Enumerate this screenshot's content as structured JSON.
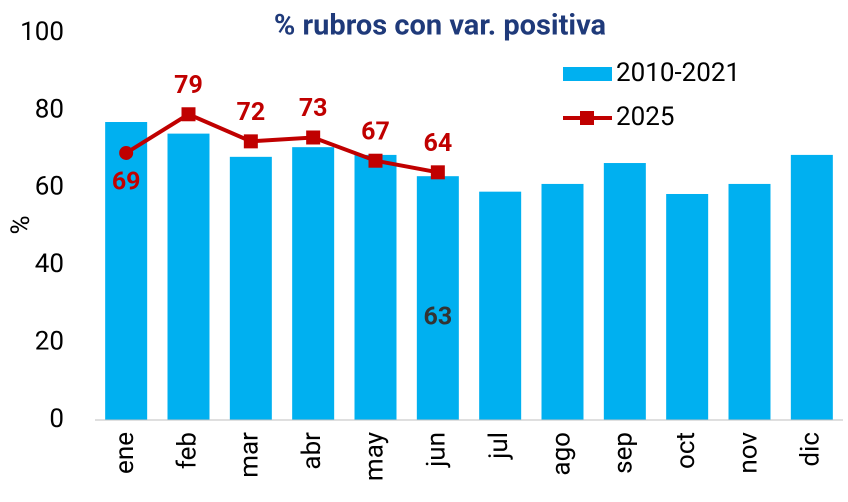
{
  "chart_data": {
    "type": "bar",
    "title": "% rubros con var. positiva",
    "ylabel": "%",
    "categories": [
      "ene",
      "feb",
      "mar",
      "abr",
      "may",
      "jun",
      "jul",
      "ago",
      "sep",
      "oct",
      "nov",
      "dic"
    ],
    "series": [
      {
        "name": "2010-2021",
        "type": "bar",
        "color": "#00b0f0",
        "values": [
          77,
          74,
          68,
          70.5,
          68.5,
          63,
          59,
          61,
          66.4,
          58.4,
          61,
          68.5
        ],
        "value_labels": [
          null,
          null,
          null,
          null,
          null,
          "63",
          null,
          null,
          null,
          null,
          null,
          null
        ]
      },
      {
        "name": "2025",
        "type": "line",
        "color": "#c00000",
        "values": [
          69,
          79,
          72,
          73,
          67,
          64,
          null,
          null,
          null,
          null,
          null,
          null
        ]
      }
    ],
    "ylim": [
      0,
      100
    ],
    "yticks": [
      0,
      20,
      40,
      60,
      80,
      100
    ]
  }
}
